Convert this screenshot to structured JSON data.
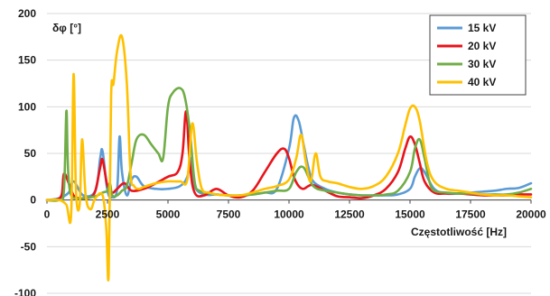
{
  "chart_data": {
    "type": "line",
    "ylabel": "δφ [°]",
    "xlabel": "Częstotliwość [Hz]",
    "xlim": [
      0,
      20000
    ],
    "ylim": [
      -100,
      200
    ],
    "x_ticks": [
      "0",
      "2500",
      "5000",
      "7500",
      "10000",
      "12500",
      "15000",
      "17500",
      "20000"
    ],
    "y_ticks": [
      "200",
      "150",
      "100",
      "50",
      "0",
      "-50",
      "-100"
    ],
    "grid": "horizontal",
    "legend_position": "top-right",
    "series": [
      {
        "name": "15 kV",
        "color": "#5b9bd5",
        "x": [
          0,
          500,
          900,
          1100,
          1500,
          2000,
          2200,
          2300,
          2500,
          2700,
          2900,
          3000,
          3100,
          3300,
          3500,
          3700,
          4000,
          4500,
          5000,
          5500,
          5800,
          5950,
          6100,
          6500,
          7000,
          7500,
          8000,
          8500,
          9000,
          9500,
          10000,
          10200,
          10400,
          10600,
          10800,
          11000,
          11500,
          12000,
          12500,
          13000,
          13500,
          14000,
          14500,
          15000,
          15200,
          15400,
          15600,
          16000,
          16500,
          17000,
          17500,
          18000,
          18500,
          19000,
          19500,
          20000
        ],
        "y": [
          0,
          2,
          8,
          20,
          5,
          10,
          45,
          52,
          10,
          3,
          12,
          68,
          30,
          5,
          22,
          25,
          15,
          12,
          12,
          15,
          25,
          45,
          15,
          6,
          6,
          5,
          5,
          6,
          8,
          12,
          55,
          88,
          85,
          60,
          35,
          20,
          12,
          8,
          6,
          5,
          5,
          5,
          6,
          12,
          25,
          34,
          30,
          12,
          7,
          7,
          8,
          9,
          10,
          12,
          13,
          18
        ]
      },
      {
        "name": "20 kV",
        "color": "#e8141b",
        "x": [
          0,
          300,
          600,
          700,
          900,
          1100,
          1300,
          1500,
          1800,
          2000,
          2200,
          2300,
          2500,
          2700,
          2900,
          3200,
          3500,
          4000,
          4500,
          5000,
          5400,
          5600,
          5750,
          5900,
          6100,
          6500,
          7000,
          7500,
          8000,
          8500,
          9000,
          9500,
          9800,
          10000,
          10200,
          10400,
          10600,
          10800,
          11000,
          11500,
          12000,
          12500,
          13000,
          13500,
          14000,
          14500,
          14800,
          15000,
          15200,
          15400,
          15600,
          16000,
          16500,
          17000,
          17500,
          18000,
          18500,
          19000,
          19500,
          20000
        ],
        "y": [
          0,
          0,
          5,
          28,
          18,
          5,
          2,
          2,
          3,
          10,
          35,
          43,
          15,
          8,
          12,
          18,
          10,
          12,
          18,
          25,
          30,
          50,
          95,
          40,
          8,
          5,
          12,
          5,
          3,
          10,
          30,
          50,
          55,
          45,
          25,
          15,
          12,
          15,
          16,
          10,
          4,
          3,
          2,
          5,
          12,
          30,
          55,
          68,
          60,
          40,
          20,
          8,
          7,
          7,
          6,
          5,
          5,
          5,
          6,
          6
        ]
      },
      {
        "name": "30 kV",
        "color": "#70ad47",
        "x": [
          0,
          500,
          700,
          800,
          850,
          900,
          1000,
          1200,
          1500,
          2000,
          2300,
          2500,
          2600,
          2700,
          2900,
          3100,
          3300,
          3500,
          3700,
          4000,
          4300,
          4600,
          4800,
          5000,
          5200,
          5500,
          5700,
          5900,
          6100,
          6300,
          6600,
          7000,
          7500,
          8000,
          8500,
          9000,
          9500,
          10000,
          10300,
          10600,
          11000,
          11500,
          12000,
          12500,
          13000,
          13500,
          14000,
          14500,
          15000,
          15200,
          15400,
          15600,
          15800,
          16000,
          16500,
          17000,
          17500,
          18000,
          18500,
          19000,
          19500,
          20000
        ],
        "y": [
          0,
          0,
          10,
          95,
          50,
          20,
          5,
          2,
          2,
          4,
          8,
          10,
          18,
          5,
          5,
          10,
          15,
          40,
          65,
          70,
          60,
          50,
          45,
          100,
          115,
          120,
          110,
          75,
          20,
          10,
          8,
          6,
          5,
          5,
          6,
          8,
          10,
          12,
          30,
          35,
          15,
          10,
          8,
          6,
          5,
          5,
          6,
          10,
          30,
          55,
          65,
          45,
          20,
          10,
          8,
          7,
          7,
          6,
          6,
          6,
          8,
          12
        ]
      },
      {
        "name": "40 kV",
        "color": "#ffc000",
        "x": [
          0,
          500,
          800,
          1000,
          1100,
          1200,
          1350,
          1450,
          1600,
          1800,
          2000,
          2300,
          2450,
          2550,
          2650,
          2750,
          2900,
          3100,
          3300,
          3450,
          3600,
          3800,
          4000,
          4500,
          5000,
          5500,
          5800,
          6000,
          6200,
          6400,
          6700,
          7000,
          7500,
          8000,
          8500,
          9000,
          9500,
          10000,
          10300,
          10500,
          10700,
          10900,
          11100,
          11300,
          11600,
          12000,
          12500,
          13000,
          13500,
          14000,
          14500,
          14800,
          15000,
          15200,
          15400,
          15700,
          16000,
          16500,
          17000,
          17500,
          18000,
          18500,
          19000,
          19500,
          20000
        ],
        "y": [
          0,
          0,
          -5,
          -15,
          135,
          10,
          -5,
          65,
          5,
          -10,
          2,
          5,
          -30,
          -80,
          110,
          125,
          160,
          175,
          125,
          30,
          15,
          12,
          14,
          18,
          20,
          20,
          22,
          82,
          40,
          12,
          8,
          6,
          5,
          5,
          8,
          12,
          15,
          22,
          45,
          70,
          40,
          20,
          50,
          25,
          20,
          18,
          14,
          12,
          15,
          25,
          50,
          80,
          98,
          100,
          85,
          40,
          20,
          12,
          10,
          8,
          6,
          5,
          5,
          4,
          3
        ]
      }
    ]
  }
}
